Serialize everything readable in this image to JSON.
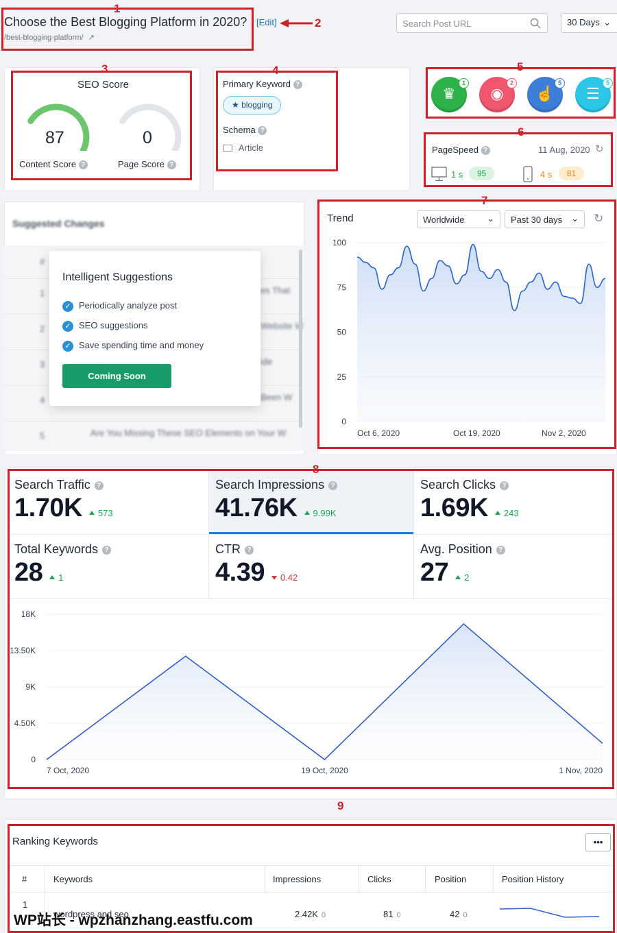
{
  "header": {
    "title": "Choose the Best Blogging Platform in 2020?",
    "edit_label": "[Edit]",
    "permalink": "/best-blogging-platform/",
    "search_placeholder": "Search Post URL",
    "range_select": "30 Days"
  },
  "seo": {
    "title": "SEO Score",
    "content_score": "87",
    "content_label": "Content Score",
    "page_score": "0",
    "page_label": "Page Score",
    "content_fraction": 0.87,
    "page_fraction": 0.0
  },
  "keyword": {
    "label": "Primary Keyword",
    "value": "blogging",
    "schema_label": "Schema",
    "schema_value": "Article"
  },
  "badges": [
    {
      "icon": "crown-icon",
      "count": "1",
      "color": "#2db34a"
    },
    {
      "icon": "eye-icon",
      "count": "2",
      "color": "#f0566e"
    },
    {
      "icon": "pointer-icon",
      "count": "5",
      "color": "#3d7ed8"
    },
    {
      "icon": "list-icon",
      "count": "5",
      "color": "#2cc6e6"
    }
  ],
  "pagespeed": {
    "label": "PageSpeed",
    "date": "11 Aug, 2020",
    "desktop_time": "1 s",
    "desktop_score": "95",
    "mobile_time": "4 s",
    "mobile_score": "81"
  },
  "suggested": {
    "title": "Suggested Changes",
    "col_hash": "#",
    "rows": [
      {
        "n": "1",
        "text": "es That"
      },
      {
        "n": "2",
        "text": "Website W"
      },
      {
        "n": "3",
        "text": "ide"
      },
      {
        "n": "4",
        "text": "Been W"
      },
      {
        "n": "5",
        "text": "Are You Missing These SEO Elements on Your W"
      }
    ],
    "popup": {
      "title": "Intelligent Suggestions",
      "items": [
        "Periodically analyze post",
        "SEO suggestions",
        "Save spending time and money"
      ],
      "button": "Coming Soon"
    }
  },
  "trend": {
    "title": "Trend",
    "region": "Worldwide",
    "period": "Past 30 days",
    "chart_data": {
      "type": "area",
      "ylim": [
        0,
        100
      ],
      "yticks": [
        "100",
        "75",
        "50",
        "25",
        "0"
      ],
      "xticks": [
        "Oct 6, 2020",
        "Oct 19, 2020",
        "Nov 2, 2020"
      ],
      "values": [
        92,
        89,
        86,
        74,
        82,
        86,
        98,
        88,
        73,
        80,
        90,
        87,
        77,
        82,
        99,
        84,
        80,
        85,
        78,
        62,
        73,
        78,
        83,
        74,
        78,
        70,
        69,
        66,
        88,
        75,
        80
      ]
    }
  },
  "metrics": {
    "items": [
      {
        "label": "Search Traffic",
        "value": "1.70K",
        "delta": "573",
        "dir": "up"
      },
      {
        "label": "Search Impressions",
        "value": "41.76K",
        "delta": "9.99K",
        "dir": "up"
      },
      {
        "label": "Search Clicks",
        "value": "1.69K",
        "delta": "243",
        "dir": "up"
      },
      {
        "label": "Total Keywords",
        "value": "28",
        "delta": "1",
        "dir": "up"
      },
      {
        "label": "CTR",
        "value": "4.39",
        "delta": "0.42",
        "dir": "down"
      },
      {
        "label": "Avg. Position",
        "value": "27",
        "delta": "2",
        "dir": "up"
      }
    ],
    "chart_data": {
      "type": "area",
      "ylim": [
        0,
        18000
      ],
      "yticks": [
        "18K",
        "13.50K",
        "9K",
        "4.50K",
        "0"
      ],
      "xticks": [
        "7 Oct, 2020",
        "19 Oct, 2020",
        "1 Nov, 2020"
      ],
      "points": [
        [
          0,
          0
        ],
        [
          0.25,
          12800
        ],
        [
          0.5,
          0
        ],
        [
          0.75,
          16800
        ],
        [
          1.0,
          2000
        ]
      ]
    }
  },
  "ranking": {
    "title": "Ranking Keywords",
    "more_label": "•••",
    "columns": [
      "#",
      "Keywords",
      "Impressions",
      "Clicks",
      "Position",
      "Position History"
    ],
    "rows": [
      {
        "n": "1",
        "keyword": "wordpress and seo",
        "impressions": "2.42K",
        "imp_delta": "0",
        "clicks": "81",
        "clicks_delta": "0",
        "position": "42",
        "pos_delta": "0"
      }
    ]
  },
  "watermark": "WP站长 - wpzhanzhang.eastfu.com",
  "annotations": [
    "1",
    "2",
    "3",
    "4",
    "5",
    "6",
    "7",
    "8",
    "9"
  ]
}
